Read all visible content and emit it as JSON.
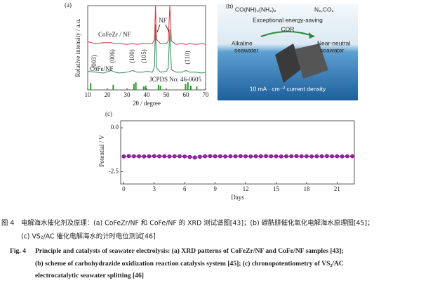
{
  "chart_data": [
    {
      "type": "line",
      "panel_label": "(a)",
      "xlabel": "2θ / degree",
      "ylabel": "Relative intensity / a.u.",
      "x": [
        10,
        14,
        18,
        22,
        24,
        26,
        30,
        33,
        35,
        38,
        40,
        43,
        44,
        44.5,
        45,
        47,
        50,
        51,
        51.8,
        52.6,
        55,
        58,
        60,
        62,
        65,
        68,
        70
      ],
      "series": [
        {
          "name": "CoFeZr / NF",
          "color": "#e0303a",
          "values": [
            57,
            55,
            56,
            56,
            55,
            55,
            54,
            55,
            54,
            55,
            55,
            55,
            60,
            100,
            60,
            55,
            55,
            58,
            100,
            58,
            54,
            55,
            54,
            55,
            54,
            55,
            54
          ]
        },
        {
          "name": "CoFe/NF",
          "color": "#2e8b57",
          "values": [
            22,
            21,
            20,
            23,
            21,
            20,
            21,
            23,
            21,
            21,
            22,
            21,
            28,
            78,
            26,
            21,
            22,
            26,
            72,
            24,
            21,
            21,
            23,
            21,
            21,
            20,
            21
          ]
        }
      ],
      "reference": {
        "name": "JCPDS No: 46-0605",
        "color": "#2a9a2a",
        "x": [
          11.5,
          23,
          33.5,
          34.5,
          38.5,
          39.5,
          46,
          47,
          59.8,
          61,
          62.5,
          65.5
        ],
        "values": [
          8,
          6,
          7,
          9,
          4,
          5,
          6,
          5,
          7,
          9,
          5,
          4
        ]
      },
      "annotations": [
        "(003)",
        "(006)",
        "(100)",
        "(105)",
        "(110)"
      ],
      "peak_label": "NF",
      "xlim": [
        10,
        70
      ],
      "xticks": [
        10,
        20,
        30,
        40,
        50,
        60,
        70
      ],
      "ylim": [
        0,
        100
      ]
    },
    {
      "type": "scatter-line",
      "panel_label": "(c)",
      "xlabel": "Days",
      "ylabel": "Potential / V",
      "x": [
        0,
        0.5,
        1,
        1.5,
        2,
        2.5,
        3,
        3.5,
        4,
        4.5,
        5,
        5.5,
        6,
        6.5,
        7,
        7.5,
        8,
        8.5,
        9,
        9.5,
        10,
        10.5,
        11,
        11.5,
        12,
        12.5,
        13,
        13.5,
        14,
        14.5,
        15,
        15.5,
        16,
        16.5,
        17,
        17.5,
        18,
        18.5,
        19,
        19.5,
        20,
        20.5,
        21,
        21.5,
        22,
        22.5
      ],
      "series": [
        {
          "color": "#a020b0",
          "values": [
            -1.63,
            -1.61,
            -1.62,
            -1.62,
            -1.63,
            -1.62,
            -1.61,
            -1.62,
            -1.62,
            -1.63,
            -1.62,
            -1.62,
            -1.63,
            -1.66,
            -1.69,
            -1.65,
            -1.62,
            -1.61,
            -1.62,
            -1.62,
            -1.63,
            -1.62,
            -1.62,
            -1.61,
            -1.62,
            -1.63,
            -1.62,
            -1.62,
            -1.61,
            -1.62,
            -1.62,
            -1.63,
            -1.62,
            -1.62,
            -1.61,
            -1.62,
            -1.62,
            -1.63,
            -1.62,
            -1.62,
            -1.61,
            -1.62,
            -1.62,
            -1.63,
            -1.62,
            -1.62
          ]
        }
      ],
      "xlim": [
        -0.3,
        22.7
      ],
      "xticks": [
        0,
        3,
        6,
        9,
        12,
        15,
        18,
        21
      ],
      "ylim": [
        -3.2,
        0.4
      ],
      "yticks": [
        {
          "value": 0,
          "label": "0.0"
        },
        -2.5
      ]
    }
  ],
  "diagram": {
    "panel_label": "(b)",
    "reactant": "CO(NH)₂(NH₂)₂",
    "product": "N₂,CO₂",
    "arrow_label": "Exceptional energy-saving",
    "reaction": "COR",
    "left_label": [
      "Alkaline",
      "seawater"
    ],
    "right_label": [
      "Near-neutral",
      "seawater"
    ],
    "current": "10 mA · cm⁻² current density"
  },
  "caption": {
    "cn": {
      "label": "图 4",
      "lines": [
        "电解海水催化剂及原理：(a) CoFeZr/NF 和 CoFe/NF 的 XRD 测试谱图[43]；(b) 碳酰肼催化氧化电解海水原理图[45]；",
        "(c) VS₂/AC 催化电解海水的计时电位测试[46]"
      ]
    },
    "en": {
      "label": "Fig. 4",
      "lines": [
        "Principle and catalysts of seawater electrolysis: (a) XRD patterns of CoFeZr/NF and CoFe/NF samples [43];",
        "(b) scheme of carbohydrazide oxidization reaction catalysis system [45]; (c) chronopotentiometry of VS₂/AC",
        "electrocatalytic seawater splitting [46]"
      ]
    }
  }
}
